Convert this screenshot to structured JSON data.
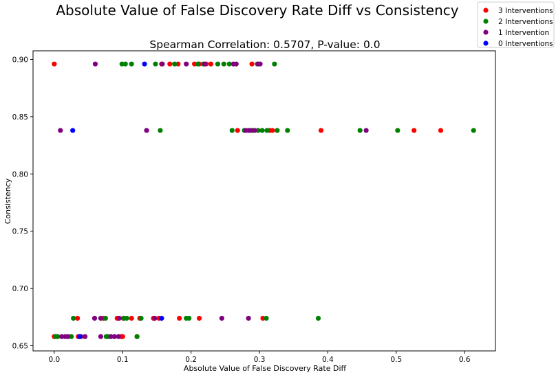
{
  "chart_data": {
    "type": "scatter",
    "title": "Absolute Value of False Discovery Rate Diff vs Consistency",
    "subtitle": "Spearman Correlation: 0.5707, P-value: 0.0",
    "xlabel": "Absolute Value of False Discovery Rate Diff",
    "ylabel": "Consistency",
    "xlim": [
      -0.031,
      0.645
    ],
    "ylim": [
      0.6455,
      0.9075
    ],
    "x_ticks": [
      "0.0",
      "0.1",
      "0.2",
      "0.3",
      "0.4",
      "0.5",
      "0.6"
    ],
    "y_ticks": [
      "0.65",
      "0.70",
      "0.75",
      "0.80",
      "0.85",
      "0.90"
    ],
    "grid": false,
    "legend_position": "top-right",
    "series": [
      {
        "name": "3 Interventions",
        "color": "#ff0000",
        "points": [
          [
            0.0,
            0.896
          ],
          [
            0.157,
            0.896
          ],
          [
            0.169,
            0.896
          ],
          [
            0.181,
            0.896
          ],
          [
            0.205,
            0.896
          ],
          [
            0.212,
            0.896
          ],
          [
            0.222,
            0.896
          ],
          [
            0.229,
            0.896
          ],
          [
            0.289,
            0.896
          ],
          [
            0.268,
            0.838
          ],
          [
            0.315,
            0.838
          ],
          [
            0.319,
            0.838
          ],
          [
            0.39,
            0.838
          ],
          [
            0.526,
            0.838
          ],
          [
            0.565,
            0.838
          ],
          [
            0.034,
            0.674
          ],
          [
            0.072,
            0.674
          ],
          [
            0.092,
            0.674
          ],
          [
            0.101,
            0.674
          ],
          [
            0.113,
            0.674
          ],
          [
            0.125,
            0.674
          ],
          [
            0.145,
            0.674
          ],
          [
            0.153,
            0.674
          ],
          [
            0.183,
            0.674
          ],
          [
            0.212,
            0.674
          ],
          [
            0.305,
            0.674
          ],
          [
            0.0,
            0.658
          ],
          [
            0.035,
            0.658
          ],
          [
            0.098,
            0.658
          ],
          [
            0.1,
            0.658
          ],
          [
            0.121,
            0.658
          ]
        ]
      },
      {
        "name": "2 Interventions",
        "color": "#008000",
        "points": [
          [
            0.099,
            0.896
          ],
          [
            0.104,
            0.896
          ],
          [
            0.113,
            0.896
          ],
          [
            0.148,
            0.896
          ],
          [
            0.176,
            0.896
          ],
          [
            0.21,
            0.896
          ],
          [
            0.218,
            0.896
          ],
          [
            0.239,
            0.896
          ],
          [
            0.248,
            0.896
          ],
          [
            0.256,
            0.896
          ],
          [
            0.297,
            0.896
          ],
          [
            0.322,
            0.896
          ],
          [
            0.155,
            0.838
          ],
          [
            0.26,
            0.838
          ],
          [
            0.278,
            0.838
          ],
          [
            0.29,
            0.838
          ],
          [
            0.298,
            0.838
          ],
          [
            0.304,
            0.838
          ],
          [
            0.311,
            0.838
          ],
          [
            0.326,
            0.838
          ],
          [
            0.341,
            0.838
          ],
          [
            0.447,
            0.838
          ],
          [
            0.502,
            0.838
          ],
          [
            0.613,
            0.838
          ],
          [
            0.028,
            0.674
          ],
          [
            0.075,
            0.674
          ],
          [
            0.102,
            0.674
          ],
          [
            0.106,
            0.674
          ],
          [
            0.127,
            0.674
          ],
          [
            0.193,
            0.674
          ],
          [
            0.197,
            0.674
          ],
          [
            0.31,
            0.674
          ],
          [
            0.386,
            0.674
          ],
          [
            0.002,
            0.658
          ],
          [
            0.005,
            0.658
          ],
          [
            0.025,
            0.658
          ],
          [
            0.076,
            0.658
          ],
          [
            0.079,
            0.658
          ],
          [
            0.121,
            0.658
          ]
        ]
      },
      {
        "name": "1 Intervention",
        "color": "#800080",
        "points": [
          [
            0.06,
            0.896
          ],
          [
            0.158,
            0.896
          ],
          [
            0.193,
            0.896
          ],
          [
            0.22,
            0.896
          ],
          [
            0.262,
            0.896
          ],
          [
            0.266,
            0.896
          ],
          [
            0.298,
            0.896
          ],
          [
            0.301,
            0.896
          ],
          [
            0.009,
            0.838
          ],
          [
            0.135,
            0.838
          ],
          [
            0.28,
            0.838
          ],
          [
            0.284,
            0.838
          ],
          [
            0.287,
            0.838
          ],
          [
            0.293,
            0.838
          ],
          [
            0.456,
            0.838
          ],
          [
            0.059,
            0.674
          ],
          [
            0.068,
            0.674
          ],
          [
            0.095,
            0.674
          ],
          [
            0.147,
            0.674
          ],
          [
            0.245,
            0.674
          ],
          [
            0.284,
            0.674
          ],
          [
            0.011,
            0.658
          ],
          [
            0.016,
            0.658
          ],
          [
            0.02,
            0.658
          ],
          [
            0.039,
            0.658
          ],
          [
            0.045,
            0.658
          ],
          [
            0.068,
            0.658
          ],
          [
            0.083,
            0.658
          ],
          [
            0.088,
            0.658
          ],
          [
            0.094,
            0.658
          ]
        ]
      },
      {
        "name": "0 Interventions",
        "color": "#0000ff",
        "points": [
          [
            0.132,
            0.896
          ],
          [
            0.027,
            0.838
          ],
          [
            0.157,
            0.674
          ],
          [
            0.037,
            0.658
          ]
        ]
      }
    ]
  }
}
